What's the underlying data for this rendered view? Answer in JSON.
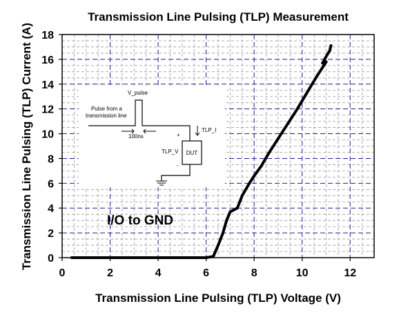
{
  "chart_data": {
    "type": "line",
    "title": "Transmission Line Pulsing (TLP) Measurement",
    "xlabel": "Transmission Line Pulsing (TLP) Voltage (V)",
    "ylabel": "Transmission Line Pulsing (TLP) Current (A)",
    "xlim": [
      0,
      13
    ],
    "ylim": [
      0,
      18
    ],
    "xticks": [
      "0",
      "2",
      "4",
      "6",
      "8",
      "10",
      "12"
    ],
    "yticks": [
      "0",
      "2",
      "4",
      "6",
      "8",
      "10",
      "12",
      "14",
      "16",
      "18"
    ],
    "grid": true,
    "annotation": "I/O to GND",
    "series": [
      {
        "color": "#000000",
        "x": [
          0.4,
          2.0,
          4.0,
          6.0,
          6.3,
          6.5,
          6.7,
          6.85,
          7.0,
          7.05,
          7.3,
          7.5,
          7.8,
          8.0,
          8.3,
          8.6,
          9.0,
          9.4,
          9.8,
          10.2,
          10.6,
          10.9,
          11.0,
          10.85,
          11.05,
          11.15,
          11.2
        ],
        "y": [
          0.0,
          0.0,
          0.0,
          0.0,
          0.1,
          1.0,
          2.0,
          3.0,
          3.7,
          3.75,
          4.0,
          5.0,
          6.0,
          6.6,
          7.4,
          8.4,
          9.6,
          10.8,
          12.0,
          13.3,
          14.6,
          15.5,
          15.8,
          15.7,
          16.4,
          16.7,
          17.1
        ]
      }
    ]
  },
  "inset": {
    "v_pulse": "V_pulse",
    "source_line1": "Pulse from a",
    "source_line2": "transmission line",
    "duration": "100ns",
    "tlp_i": "TLP_I",
    "tlp_v": "TLP_V",
    "plus": "+",
    "minus": "-",
    "dut": "DUT"
  }
}
